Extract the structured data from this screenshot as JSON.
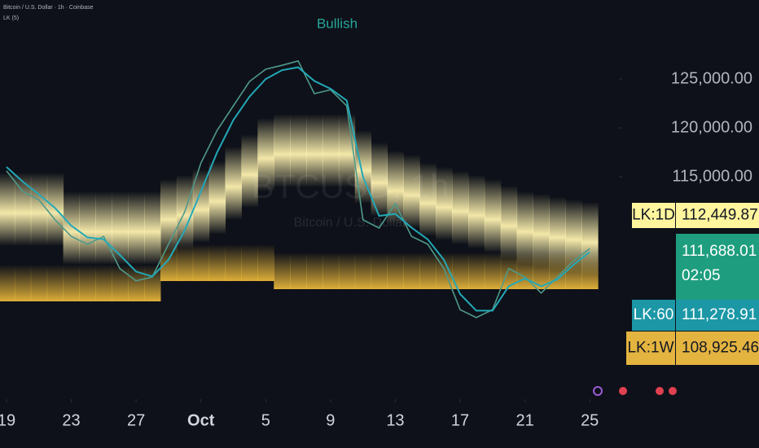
{
  "chart_data": {
    "type": "line",
    "header": "Bitcoin / U.S. Dollar · 1h · Coinbase",
    "indicator": "LK (5)",
    "annotation": "Bullish",
    "watermark": "BTCUSD, 1h",
    "watermark_subtitle": "Bitcoin / U.S. Dollar",
    "x": [
      0,
      1,
      2,
      3,
      4,
      5,
      6,
      7,
      8,
      9,
      10,
      11,
      12,
      13,
      14,
      15,
      16,
      17,
      18,
      19,
      20,
      21,
      22,
      23,
      24,
      25,
      26,
      27,
      28,
      29,
      30,
      31,
      32,
      33,
      34,
      35,
      36
    ],
    "xlim": [
      -0.4,
      37.8
    ],
    "xticks": [
      {
        "value": 0,
        "label": "19"
      },
      {
        "value": 4,
        "label": "23"
      },
      {
        "value": 8,
        "label": "27"
      },
      {
        "value": 12,
        "label": "Oct"
      },
      {
        "value": 16,
        "label": "5"
      },
      {
        "value": 20,
        "label": "9"
      },
      {
        "value": 24,
        "label": "13"
      },
      {
        "value": 28,
        "label": "17"
      },
      {
        "value": 32,
        "label": "21"
      },
      {
        "value": 36,
        "label": "25"
      }
    ],
    "ylim": [
      92250,
      133083
    ],
    "yticks": [
      {
        "value": 115000,
        "label": "115,000.00"
      },
      {
        "value": 120000,
        "label": "120,000.00"
      },
      {
        "value": 125000,
        "label": "125,000.00"
      }
    ],
    "series": [
      {
        "color": "#4f9a8a",
        "style": "line",
        "price_label": "111,688.01",
        "countdown": "02:05",
        "label_color": "#1e9e7e",
        "values": [
          115600,
          113500,
          112650,
          110600,
          108900,
          108100,
          108900,
          105600,
          104350,
          104750,
          108100,
          111400,
          116400,
          119750,
          122250,
          124750,
          126000,
          126400,
          126850,
          123500,
          123900,
          122250,
          110600,
          109750,
          112250,
          108900,
          108100,
          105600,
          101400,
          100600,
          101400,
          105600,
          104750,
          103100,
          104750,
          106400,
          107650
        ]
      },
      {
        "name": "LK:60",
        "color": "#22a9b8",
        "style": "line",
        "price_label": "111,278.91",
        "label_color": "#1c97a6",
        "values": [
          116000,
          114500,
          113200,
          111800,
          110000,
          108800,
          108600,
          107000,
          105300,
          104800,
          106500,
          109500,
          113500,
          117500,
          120800,
          123200,
          125000,
          125900,
          126200,
          124800,
          124000,
          122800,
          115000,
          111000,
          111200,
          109800,
          108600,
          106500,
          103000,
          101300,
          101300,
          103800,
          104600,
          103800,
          104500,
          106000,
          107300
        ]
      },
      {
        "name": "LK:1D",
        "color": "#fff3b0",
        "style": "band",
        "price_label": "112,449.87",
        "label_color": "#fff59d",
        "values": [
          111250,
          111250,
          111250,
          111250,
          109330,
          109330,
          109330,
          109330,
          109330,
          109330,
          110580,
          111000,
          111580,
          112420,
          113920,
          115170,
          116830,
          117250,
          117250,
          117250,
          117250,
          117250,
          115580,
          114330,
          113500,
          113080,
          112250,
          111830,
          111420,
          111000,
          110580,
          109920,
          109330,
          109080,
          108750,
          108500,
          108250
        ]
      },
      {
        "name": "LK:1W",
        "color": "#e8b73a",
        "style": "band",
        "price_label": "108,925.46",
        "label_color": "#e4b440",
        "values": [
          102250,
          102250,
          102250,
          102250,
          102250,
          102250,
          102250,
          102250,
          102250,
          102250,
          104330,
          104330,
          104330,
          104330,
          104330,
          104330,
          104330,
          103500,
          103500,
          103500,
          103500,
          103500,
          103500,
          103500,
          103500,
          103500,
          103500,
          103500,
          103500,
          103500,
          103500,
          103500,
          103500,
          103500,
          103500,
          103500,
          103500
        ]
      }
    ]
  }
}
